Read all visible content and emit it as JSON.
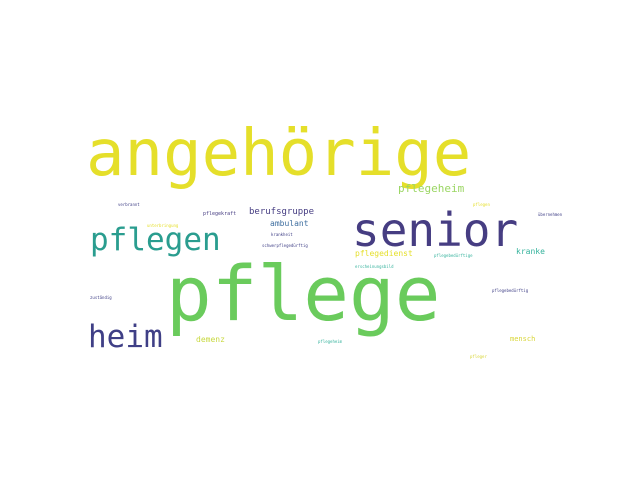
{
  "colors": {
    "background": "#ffffff",
    "yellow": "#e5df2a",
    "indigo": "#3f3f86",
    "teal": "#2a9d8f",
    "green": "#6acb5c",
    "violet": "#463d82",
    "lightgreen": "#9bd663",
    "sea": "#36b39d"
  },
  "words": {
    "angehoerige": "angehörige",
    "senior": "senior",
    "pflegen": "pflegen",
    "pflege": "pflege",
    "heim": "heim",
    "pflegeheim": "pflegeheim",
    "berufsgruppe": "berufsgruppe",
    "ambulant": "ambulant",
    "pflegekraft": "pflegekraft",
    "demenz": "demenz",
    "kranke": "kranke",
    "pflegedienst": "pflegedienst",
    "mensch": "mensch",
    "verbrannt": "verbrannt",
    "unterbringung": "unterbringung",
    "zustaendig": "zuständig",
    "pflegeheim2": "pflegebedürftige",
    "pflegeheim3": "pflegebedürftig",
    "pflegedoc": "pflegeheim",
    "pfleger": "pfleger",
    "uebernehmen": "übernehmen",
    "pflegen2": "pflegen",
    "kranken": "krankheit",
    "sterben": "schwerpflegedürftig",
    "ersch": "erscheinungsbild"
  }
}
